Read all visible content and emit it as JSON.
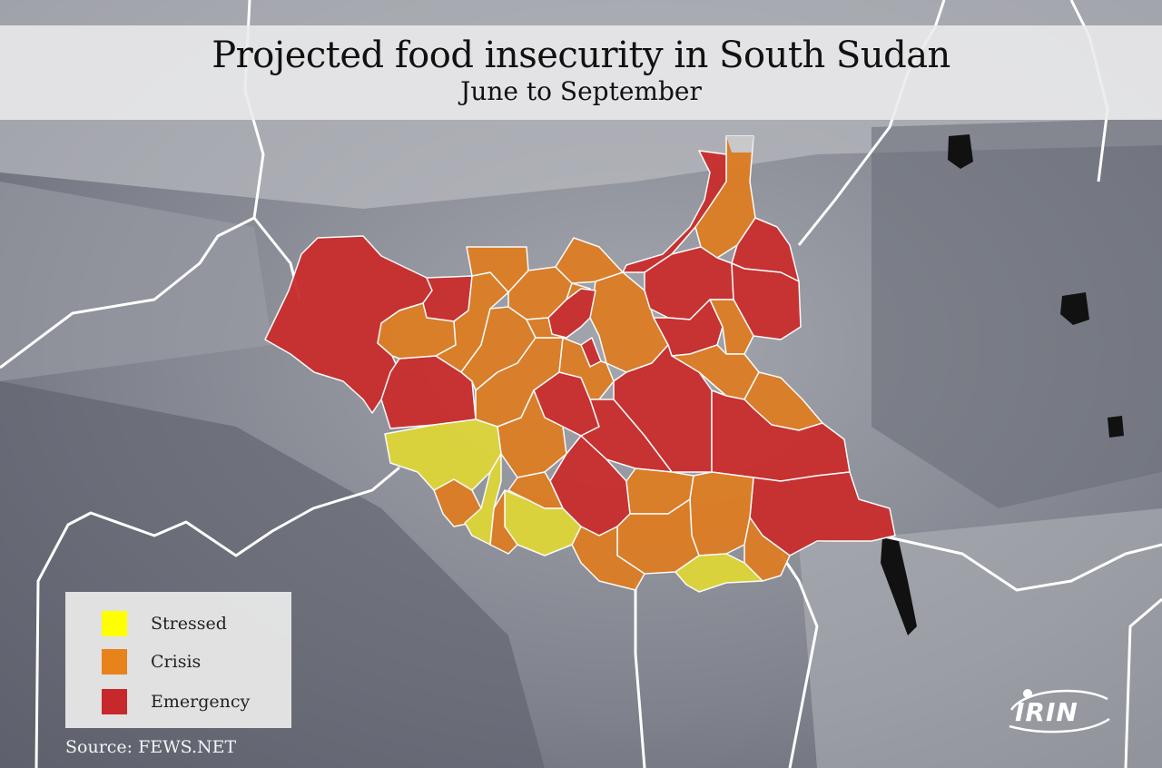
{
  "title": "Projected food insecurity in South Sudan",
  "subtitle": "June to September",
  "legend": {
    "items": [
      {
        "label": "Stressed",
        "color": "#ffff00"
      },
      {
        "label": "Crisis",
        "color": "#e8821a"
      },
      {
        "label": "Emergency",
        "color": "#c7282b"
      }
    ]
  },
  "source": "Source: FEWS.NET",
  "logo": "IRIN",
  "colors": {
    "stressed": "#ddd53a",
    "crisis": "#dc7d25",
    "emergency": "#c92e2e",
    "background": "#8a8d96",
    "borders": "#ffffff"
  }
}
